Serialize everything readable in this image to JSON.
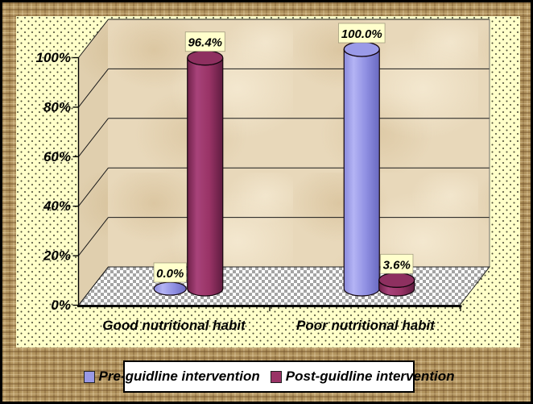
{
  "chart_data": {
    "type": "bar",
    "subtype": "3d-cylinder-column",
    "title": "",
    "categories": [
      "Good nutritional habit",
      "Poor nutritional habit"
    ],
    "series": [
      {
        "name": "Pre-guidline intervention",
        "values": [
          0.0,
          100.0
        ],
        "data_labels": [
          "0.0%",
          "100.0%"
        ],
        "color": "#9999e6"
      },
      {
        "name": "Post-guidline intervention",
        "values": [
          96.4,
          3.6
        ],
        "data_labels": [
          "96.4%",
          "3.6%"
        ],
        "color": "#993366"
      }
    ],
    "y_axis": {
      "min": 0,
      "max": 100,
      "tick_values": [
        0,
        20,
        40,
        60,
        80,
        100
      ],
      "tick_labels": [
        "0%",
        "20%",
        "40%",
        "60%",
        "80%",
        "100%"
      ]
    },
    "gridlines": true,
    "legend_position": "bottom"
  },
  "colors": {
    "pre_gradient": [
      "#8a8adc",
      "#b4b4f4",
      "#8f8fe2",
      "#6a6ac0"
    ],
    "pre_top": "#9a9ae8",
    "post_gradient": [
      "#70214a",
      "#a8437a",
      "#993366",
      "#5f1c40"
    ],
    "post_top": "#8e3060",
    "label_box_bg": "#ffffcc",
    "panel_bg": "#ffffc9",
    "wall_tan": "#e8d8ba",
    "frame_brown": "#b2945f",
    "grid_line": "#1a1a1a"
  }
}
